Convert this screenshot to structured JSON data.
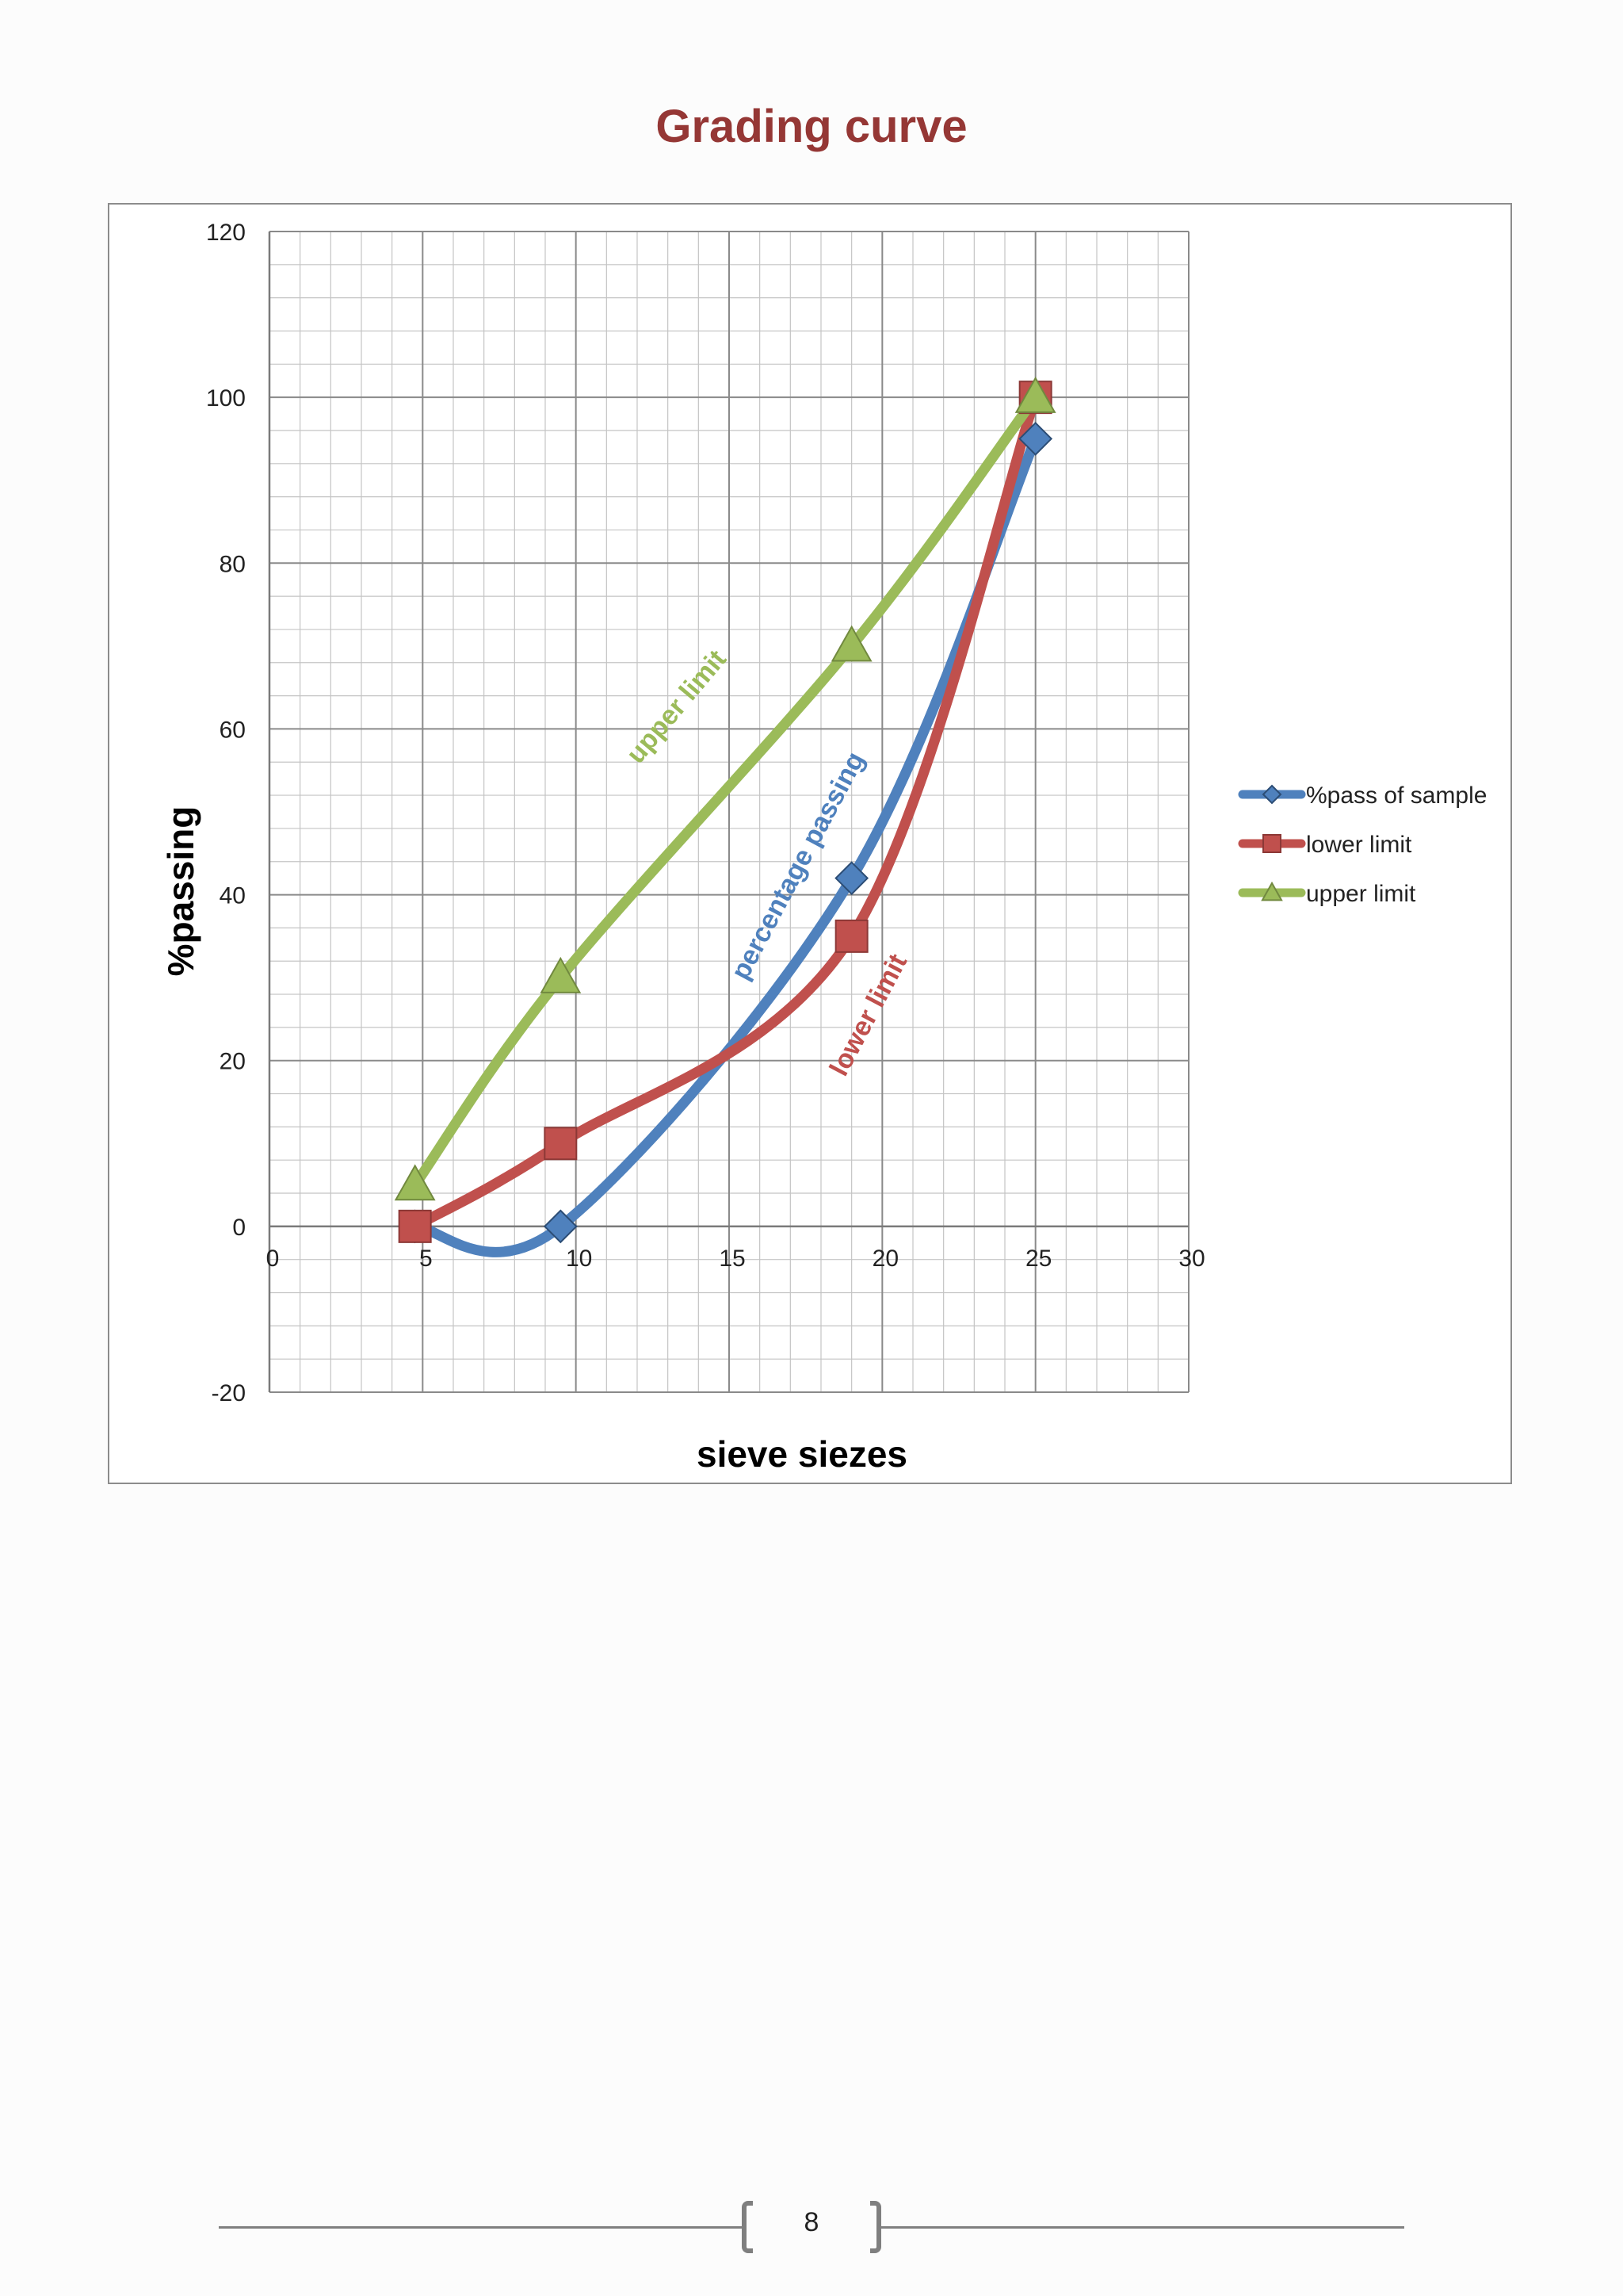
{
  "colors": {
    "sample": "#4F81BD",
    "lower": "#C0504D",
    "upper": "#9BBB59",
    "title": "#953735"
  },
  "chart_data": {
    "type": "line",
    "title": "Grading curve",
    "xlabel": "sieve siezes",
    "ylabel": "%passing",
    "xlim": [
      0,
      30
    ],
    "ylim": [
      -20,
      120
    ],
    "x_ticks": [
      0,
      5,
      10,
      15,
      20,
      25,
      30
    ],
    "y_ticks": [
      -20,
      0,
      20,
      40,
      60,
      80,
      100,
      120
    ],
    "grid": true,
    "smooth": true,
    "legend_position": "right",
    "series": [
      {
        "name": "%pass of sample",
        "marker": "diamond",
        "points": [
          [
            4.75,
            0
          ],
          [
            9.5,
            0
          ],
          [
            19,
            42
          ],
          [
            25,
            95
          ]
        ]
      },
      {
        "name": "lower limit",
        "marker": "square",
        "points": [
          [
            4.75,
            0
          ],
          [
            9.5,
            10
          ],
          [
            19,
            35
          ],
          [
            25,
            100
          ]
        ]
      },
      {
        "name": "upper limit",
        "marker": "triangle",
        "points": [
          [
            4.75,
            5
          ],
          [
            9.5,
            30
          ],
          [
            19,
            70
          ],
          [
            25,
            100
          ]
        ]
      }
    ],
    "annotations": [
      {
        "text": "upper limit",
        "series": "upper limit"
      },
      {
        "text": "percentage passing",
        "series": "%pass of sample"
      },
      {
        "text": "lower limit",
        "series": "lower limit"
      }
    ]
  },
  "footer": {
    "page_number": "8"
  }
}
